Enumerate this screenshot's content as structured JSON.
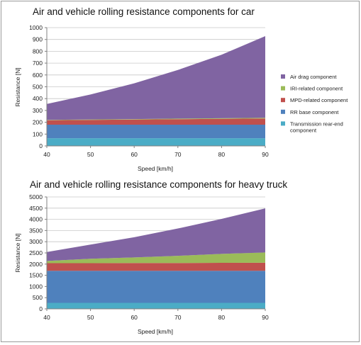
{
  "chart_data": [
    {
      "type": "area",
      "stacked": true,
      "title": "Air and vehicle rolling resistance components for car",
      "xlabel": "Speed [km/h]",
      "ylabel": "Resistance [N]",
      "xlim": [
        40,
        90
      ],
      "ylim": [
        0,
        1000
      ],
      "xticks": [
        40,
        50,
        60,
        70,
        80,
        90
      ],
      "yticks": [
        0,
        100,
        200,
        300,
        400,
        500,
        600,
        700,
        800,
        900,
        1000
      ],
      "x": [
        40,
        50,
        60,
        70,
        80,
        90
      ],
      "series": [
        {
          "name": "Transmission rear-end component",
          "color": "#4bacc6",
          "values": [
            65,
            65,
            65,
            65,
            65,
            65
          ]
        },
        {
          "name": "RR base component",
          "color": "#4f81bd",
          "values": [
            115,
            115,
            115,
            115,
            115,
            115
          ]
        },
        {
          "name": "MPD-related component",
          "color": "#c0504d",
          "values": [
            37,
            40,
            43,
            46,
            49,
            52
          ]
        },
        {
          "name": "IRI-related component",
          "color": "#9bbb59",
          "values": [
            3,
            4,
            4,
            5,
            5,
            6
          ]
        },
        {
          "name": "Air drag component",
          "color": "#8064a2",
          "values": [
            135,
            211,
            302,
            411,
            537,
            690
          ]
        }
      ],
      "legend": "right",
      "grid": true
    },
    {
      "type": "area",
      "stacked": true,
      "title": "Air and vehicle rolling resistance components for heavy truck",
      "xlabel": "Speed [km/h]",
      "ylabel": "Resistance [N]",
      "xlim": [
        40,
        90
      ],
      "ylim": [
        0,
        5000
      ],
      "xticks": [
        40,
        50,
        60,
        70,
        80,
        90
      ],
      "yticks": [
        0,
        500,
        1000,
        1500,
        2000,
        2500,
        3000,
        3500,
        4000,
        4500,
        5000
      ],
      "x": [
        40,
        50,
        60,
        70,
        80,
        90
      ],
      "series": [
        {
          "name": "Transmission rear-end component",
          "color": "#4bacc6",
          "values": [
            270,
            270,
            270,
            270,
            270,
            270
          ]
        },
        {
          "name": "RR base component",
          "color": "#4f81bd",
          "values": [
            1430,
            1430,
            1430,
            1430,
            1430,
            1430
          ]
        },
        {
          "name": "MPD-related component",
          "color": "#c0504d",
          "values": [
            340,
            340,
            350,
            350,
            355,
            360
          ]
        },
        {
          "name": "IRI-related component",
          "color": "#9bbb59",
          "values": [
            100,
            200,
            250,
            320,
            400,
            460
          ]
        },
        {
          "name": "Air drag component",
          "color": "#8064a2",
          "values": [
            400,
            630,
            900,
            1220,
            1565,
            1970
          ]
        }
      ],
      "grid": true
    }
  ],
  "legend_entries": [
    {
      "label_lines": [
        "Air drag component"
      ],
      "color": "#8064a2"
    },
    {
      "label_lines": [
        "IRI-related component"
      ],
      "color": "#9bbb59"
    },
    {
      "label_lines": [
        "MPD-related component"
      ],
      "color": "#c0504d"
    },
    {
      "label_lines": [
        "RR base component"
      ],
      "color": "#4f81bd"
    },
    {
      "label_lines": [
        "Transmission rear-end",
        "component"
      ],
      "color": "#4bacc6"
    }
  ]
}
